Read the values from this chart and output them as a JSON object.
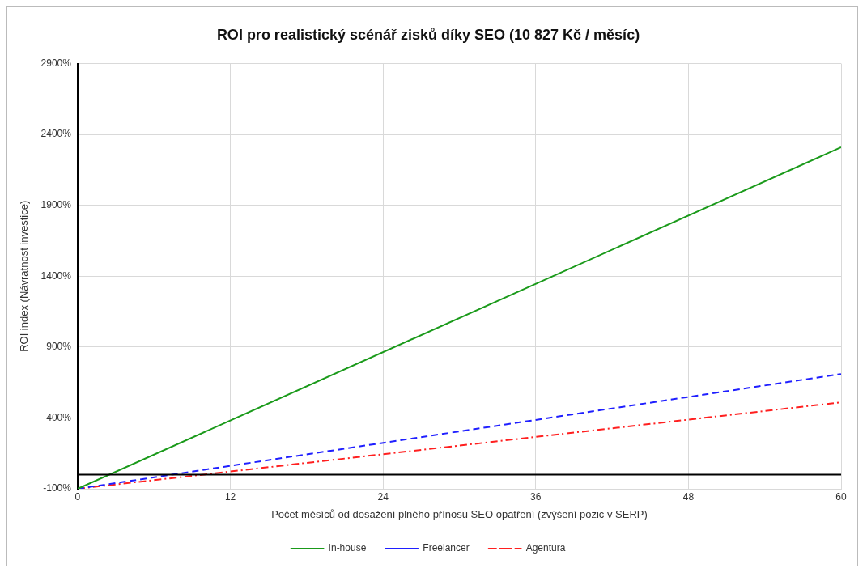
{
  "chart_data": {
    "type": "line",
    "title": "ROI pro realistický scénář zisků díky SEO (10 827 Kč / měsíc)",
    "xlabel": "Počet měsíců od dosažení plného přínosu SEO opatření (zvýšení pozic v SERP)",
    "ylabel": "ROI index (Návratnost investice)",
    "x": [
      0,
      60
    ],
    "series": [
      {
        "name": "In-house",
        "color": "#1a9a1a",
        "values": [
          -100,
          2310
        ],
        "line_style": "solid"
      },
      {
        "name": "Freelancer",
        "color": "#1f1fff",
        "values": [
          -100,
          710
        ],
        "line_style": "dashed"
      },
      {
        "name": "Agentura",
        "color": "#ff1f1f",
        "values": [
          -100,
          510
        ],
        "line_style": "dashdot"
      }
    ],
    "xlim": [
      0,
      60
    ],
    "xticks": [
      0,
      12,
      24,
      36,
      48,
      60
    ],
    "ylim": [
      -100,
      2900
    ],
    "yticks": [
      {
        "value": -100,
        "label": "-100%"
      },
      {
        "value": 400,
        "label": "400%"
      },
      {
        "value": 900,
        "label": "900%"
      },
      {
        "value": 1400,
        "label": "1400%"
      },
      {
        "value": 1900,
        "label": "1900%"
      },
      {
        "value": 2400,
        "label": "2400%"
      },
      {
        "value": 2900,
        "label": "2900%"
      }
    ],
    "ref_lines": [
      {
        "axis": "y",
        "value": 0,
        "color": "#000000"
      }
    ],
    "grid": true,
    "legend": "bottom",
    "marker": "none"
  }
}
